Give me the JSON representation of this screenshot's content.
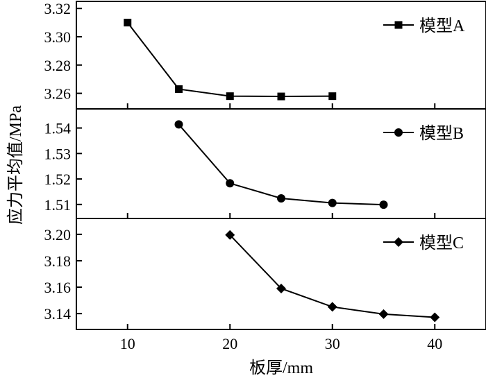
{
  "chart_data": {
    "type": "line",
    "xlabel": "板厚/mm",
    "ylabel": "应力平均值/MPa",
    "x_ticks": [
      10,
      20,
      30,
      40
    ],
    "xlim": [
      5,
      45
    ],
    "panels": [
      {
        "legend": "模型A",
        "marker": "square",
        "ylim": [
          3.249,
          3.325
        ],
        "y_ticks": [
          "3.32",
          "3.30",
          "3.28",
          "3.26"
        ],
        "series": [
          {
            "name": "模型A",
            "x": [
              10,
              15,
              20,
              25,
              30
            ],
            "y": [
              3.31,
              3.263,
              3.258,
              3.2578,
              3.258
            ]
          }
        ]
      },
      {
        "legend": "模型B",
        "marker": "circle",
        "ylim": [
          1.5045,
          1.5475
        ],
        "y_ticks": [
          "1.54",
          "1.53",
          "1.52",
          "1.51"
        ],
        "series": [
          {
            "name": "模型B",
            "x": [
              15,
              20,
              25,
              30,
              35
            ],
            "y": [
              1.5414,
              1.5183,
              1.5124,
              1.5106,
              1.5099
            ]
          }
        ]
      },
      {
        "legend": "模型C",
        "marker": "diamond",
        "ylim": [
          3.128,
          3.212
        ],
        "y_ticks": [
          "3.20",
          "3.18",
          "3.16",
          "3.14"
        ],
        "series": [
          {
            "name": "模型C",
            "x": [
              20,
              25,
              30,
              35,
              40
            ],
            "y": [
              3.1995,
              3.159,
              3.1451,
              3.1396,
              3.1372
            ]
          }
        ]
      }
    ]
  }
}
